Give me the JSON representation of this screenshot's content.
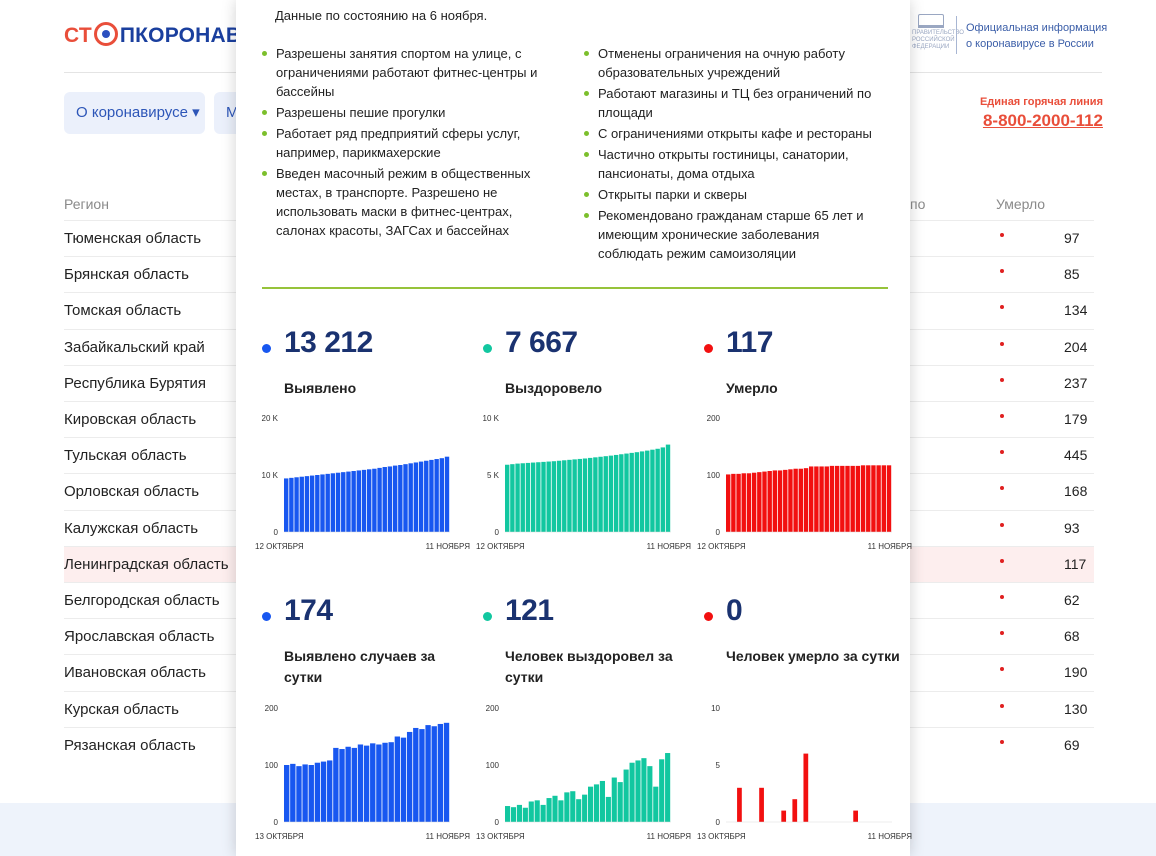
{
  "header": {
    "logo_part1": "СТ",
    "logo_part2": "ПКОРОНАВИ",
    "gov_small": "ПРАВИТЕЛЬСТВО РОССИЙСКОЙ ФЕДЕРАЦИИ",
    "gov_line1": "Официальная информация",
    "gov_line2": "о коронавирусе в России",
    "nav_about": "О коронавирусе ▾",
    "nav_second": "М",
    "hotline_label": "Единая горячая линия",
    "hotline_number": "8-800-2000-112"
  },
  "table": {
    "col_region": "Регион",
    "col_cut": "по",
    "col_deaths": "Умерло",
    "rows": [
      {
        "region": "Тюменская область",
        "deaths": "97"
      },
      {
        "region": "Брянская область",
        "deaths": "85"
      },
      {
        "region": "Томская область",
        "deaths": "134"
      },
      {
        "region": "Забайкальский край",
        "deaths": "204"
      },
      {
        "region": "Республика Бурятия",
        "deaths": "237"
      },
      {
        "region": "Кировская область",
        "deaths": "179"
      },
      {
        "region": "Тульская область",
        "deaths": "445"
      },
      {
        "region": "Орловская область",
        "deaths": "168"
      },
      {
        "region": "Калужская область",
        "deaths": "93"
      },
      {
        "region": "Ленинградская область",
        "deaths": "117",
        "highlight": true
      },
      {
        "region": "Белгородская область",
        "deaths": "62"
      },
      {
        "region": "Ярославская область",
        "deaths": "68"
      },
      {
        "region": "Ивановская область",
        "deaths": "190"
      },
      {
        "region": "Курская область",
        "deaths": "130"
      },
      {
        "region": "Рязанская область",
        "deaths": "69"
      }
    ]
  },
  "panel": {
    "date_text": "Данные по состоянию на 6 ноября.",
    "left_bullets": [
      "Разрешены занятия спортом на улице, с ограничениями работают фитнес-центры и бассейны",
      "Разрешены пешие прогулки",
      "Работает ряд предприятий сферы услуг, например, парикмахерские",
      "Введен масочный режим в общественных местах, в транспорте. Разрешено не использовать маски в фитнес-центрах, салонах красоты, ЗАГСах и бассейнах"
    ],
    "right_bullets": [
      "Отменены ограничения на очную работу образовательных учреждений",
      "Работают магазины и ТЦ без ограничений по площади",
      "С ограничениями открыты кафе и рестораны",
      "Частично открыты гостиницы, санатории, пансионаты, дома отдыха",
      "Открыты парки и скверы",
      "Рекомендовано гражданам старше 65 лет и имеющим хронические заболевания соблюдать режим самоизоляции"
    ]
  },
  "colors": {
    "blue": "#1857f0",
    "teal": "#12c7a0",
    "red": "#f21010",
    "green_bullet": "#7cbf2c"
  },
  "chart_data": [
    {
      "type": "bar",
      "color": "#1857f0",
      "value_text": "13 212",
      "label": "Выявлено",
      "ylim": [
        0,
        20000
      ],
      "yticks": [
        0,
        10000,
        20000
      ],
      "yticklabels": [
        "0",
        "10 K",
        "20 K"
      ],
      "xstart": "12 ОКТЯБРЯ",
      "xend": "11 НОЯБРЯ",
      "values": [
        9400,
        9500,
        9600,
        9700,
        9800,
        9900,
        10000,
        10100,
        10200,
        10300,
        10400,
        10500,
        10600,
        10700,
        10800,
        10900,
        11000,
        11100,
        11250,
        11400,
        11500,
        11650,
        11750,
        11900,
        12050,
        12200,
        12350,
        12500,
        12650,
        12800,
        12950,
        13212
      ]
    },
    {
      "type": "bar",
      "color": "#12c7a0",
      "value_text": "7 667",
      "label": "Выздоровело",
      "ylim": [
        0,
        10000
      ],
      "yticks": [
        0,
        5000,
        10000
      ],
      "yticklabels": [
        "0",
        "5 K",
        "10 K"
      ],
      "xstart": "12 ОКТЯБРЯ",
      "xend": "11 НОЯБРЯ",
      "values": [
        5900,
        5950,
        6000,
        6030,
        6060,
        6090,
        6120,
        6150,
        6180,
        6210,
        6250,
        6290,
        6330,
        6370,
        6410,
        6450,
        6500,
        6550,
        6600,
        6650,
        6700,
        6760,
        6820,
        6880,
        6940,
        7000,
        7070,
        7140,
        7220,
        7300,
        7420,
        7667
      ]
    },
    {
      "type": "bar",
      "color": "#f21010",
      "value_text": "117",
      "label": "Умерло",
      "ylim": [
        0,
        200
      ],
      "yticks": [
        0,
        100,
        200
      ],
      "yticklabels": [
        "0",
        "100",
        "200"
      ],
      "xstart": "12 ОКТЯБРЯ",
      "xend": "11 НОЯБРЯ",
      "values": [
        101,
        102,
        102,
        103,
        103,
        104,
        105,
        106,
        107,
        108,
        108,
        109,
        110,
        111,
        111,
        112,
        115,
        115,
        115,
        115,
        116,
        116,
        116,
        116,
        116,
        116,
        117,
        117,
        117,
        117,
        117,
        117
      ]
    },
    {
      "type": "bar",
      "color": "#1857f0",
      "value_text": "174",
      "label": "Выявлено случаев за сутки",
      "ylim": [
        0,
        200
      ],
      "yticks": [
        0,
        100,
        200
      ],
      "yticklabels": [
        "0",
        "100",
        "200"
      ],
      "xstart": "13 ОКТЯБРЯ",
      "xend": "11 НОЯБРЯ",
      "values": [
        100,
        102,
        98,
        101,
        100,
        104,
        106,
        108,
        130,
        128,
        132,
        130,
        136,
        134,
        138,
        136,
        139,
        140,
        150,
        148,
        158,
        165,
        163,
        170,
        168,
        172,
        174
      ]
    },
    {
      "type": "bar",
      "color": "#12c7a0",
      "value_text": "121",
      "label": "Человек выздоровел за сутки",
      "ylim": [
        0,
        200
      ],
      "yticks": [
        0,
        100,
        200
      ],
      "yticklabels": [
        "0",
        "100",
        "200"
      ],
      "xstart": "13 ОКТЯБРЯ",
      "xend": "11 НОЯБРЯ",
      "values": [
        28,
        26,
        30,
        25,
        36,
        38,
        30,
        42,
        46,
        38,
        52,
        54,
        40,
        48,
        62,
        66,
        72,
        44,
        78,
        70,
        92,
        104,
        108,
        112,
        98,
        62,
        110,
        121
      ]
    },
    {
      "type": "bar",
      "color": "#f21010",
      "value_text": "0",
      "label": "Человек умерло за сутки",
      "ylim": [
        0,
        10
      ],
      "yticks": [
        0,
        5,
        10
      ],
      "yticklabels": [
        "0",
        "5",
        "10"
      ],
      "xstart": "13 ОКТЯБРЯ",
      "xend": "11 НОЯБРЯ",
      "values": [
        0,
        0,
        3,
        0,
        0,
        0,
        3,
        0,
        0,
        0,
        1,
        0,
        2,
        0,
        6,
        0,
        0,
        0,
        0,
        0,
        0,
        0,
        0,
        1,
        0,
        0,
        0,
        0,
        0,
        0
      ]
    }
  ]
}
